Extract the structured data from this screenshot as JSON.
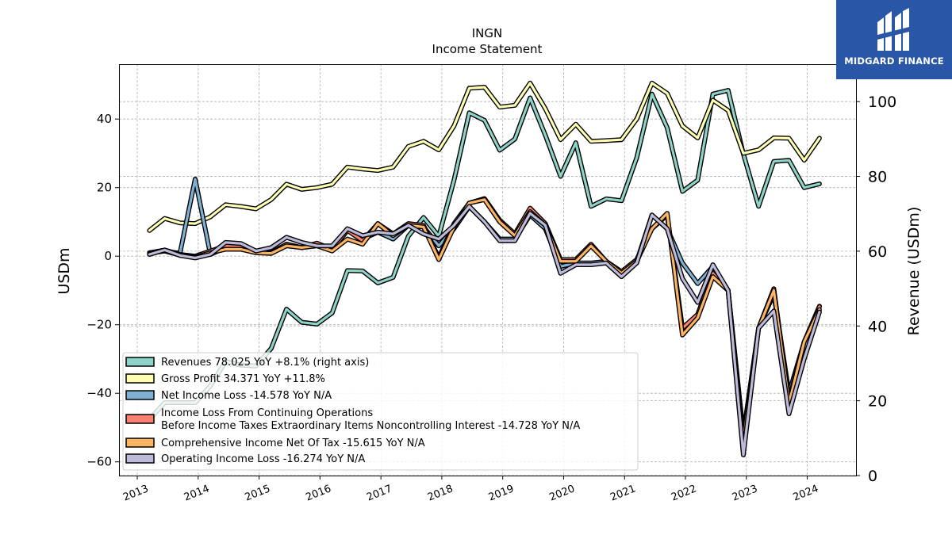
{
  "brand": {
    "name": "MIDGARD FINANCE",
    "bg_color": "#2a56a8"
  },
  "chart_data": {
    "type": "line",
    "title": "INGN",
    "subtitle": "Income Statement",
    "ylabel_left": "USDm",
    "ylabel_right": "Revenue (USDm)",
    "ylim_left": [
      -64,
      56
    ],
    "ylim_right": [
      0,
      110
    ],
    "yticks_left": [
      -60,
      -40,
      -20,
      0,
      20,
      40
    ],
    "yticks_left_labels": [
      "−60",
      "−40",
      "−20",
      "0",
      "20",
      "40"
    ],
    "yticks_right": [
      0,
      20,
      40,
      60,
      80,
      100
    ],
    "yticks_right_labels": [
      "0",
      "20",
      "40",
      "60",
      "80",
      "100"
    ],
    "xlim": [
      2012.7,
      2024.8
    ],
    "xticks": [
      2013,
      2014,
      2015,
      2016,
      2017,
      2018,
      2019,
      2020,
      2021,
      2022,
      2023,
      2024
    ],
    "xtick_labels": [
      "2013",
      "2014",
      "2015",
      "2016",
      "2017",
      "2018",
      "2019",
      "2020",
      "2021",
      "2022",
      "2023",
      "2024"
    ],
    "grid": true,
    "legend_position": "lower-left",
    "x": [
      2013.2,
      2013.45,
      2013.7,
      2013.95,
      2014.2,
      2014.45,
      2014.7,
      2014.95,
      2015.2,
      2015.45,
      2015.7,
      2015.95,
      2016.2,
      2016.45,
      2016.7,
      2016.95,
      2017.2,
      2017.45,
      2017.7,
      2017.95,
      2018.2,
      2018.45,
      2018.7,
      2018.95,
      2019.2,
      2019.45,
      2019.7,
      2019.95,
      2020.2,
      2020.45,
      2020.7,
      2020.95,
      2021.2,
      2021.45,
      2021.7,
      2021.95,
      2022.2,
      2022.45,
      2022.7,
      2022.95,
      2023.2,
      2023.45,
      2023.7,
      2023.95,
      2024.2
    ],
    "series": [
      {
        "name": "Revenues",
        "legend_label": "Revenues  78.025 YoY +8.1% (right axis)",
        "axis": "right",
        "color": "#8dd3c7",
        "values": [
          15,
          19.5,
          19.5,
          19.5,
          24,
          30.5,
          29.5,
          29.3,
          34,
          44.5,
          41,
          40.5,
          43.5,
          54.8,
          54.7,
          51.5,
          53,
          64,
          69,
          64,
          79,
          97,
          95,
          87,
          90,
          101,
          91,
          80,
          89,
          72,
          74,
          73.5,
          85,
          102,
          93,
          76,
          79,
          102,
          103,
          86,
          72,
          84,
          84.3,
          77,
          78
        ]
      },
      {
        "name": "Gross Profit",
        "legend_label": "Gross Profit  34.371 YoY +11.8%",
        "axis": "left",
        "color": "#ffffb3",
        "values": [
          7.5,
          11,
          9.7,
          9.5,
          11.5,
          15,
          14.5,
          13.8,
          16.5,
          21,
          19.5,
          20,
          21,
          26,
          25.4,
          25,
          26,
          32,
          33.5,
          31,
          38,
          49,
          49.3,
          43.5,
          44,
          50.5,
          43,
          34,
          38.5,
          33.5,
          33.7,
          34,
          40,
          50.5,
          47.5,
          38,
          34.5,
          45.5,
          42.5,
          30,
          31,
          34.5,
          34.4,
          28,
          34.4
        ]
      },
      {
        "name": "Net Income Loss",
        "legend_label": "Net Income Loss  -14.578 YoY N/A",
        "axis": "left",
        "color": "#80b1d3",
        "values": [
          1,
          1.5,
          0.8,
          22.5,
          0.5,
          2.5,
          2,
          1.5,
          1,
          3.5,
          2.5,
          3.5,
          2,
          7.5,
          5,
          7,
          5,
          9,
          8.5,
          3,
          8,
          14.5,
          10,
          5,
          5,
          12,
          8,
          -3,
          -2,
          -2,
          -1.5,
          -5,
          -1.5,
          12,
          8,
          -2,
          -8,
          -3,
          -10,
          -52,
          -21,
          -11,
          -40,
          -25,
          -14.6
        ]
      },
      {
        "name": "Income Loss From Continuing Operations Before Income Taxes Extraordinary Items Noncontrolling Interest",
        "legend_label_line1": "Income Loss From Continuing Operations",
        "legend_label_line2": "Before Income Taxes Extraordinary Items Noncontrolling Interest  -14.728 YoY N/A",
        "axis": "left",
        "color": "#fb8072",
        "values": [
          1,
          1.8,
          0.5,
          0,
          1.5,
          3,
          2.8,
          1.5,
          1,
          3.5,
          2.5,
          3.8,
          2,
          7.5,
          4.5,
          9.5,
          6.5,
          9.5,
          9,
          -0.5,
          9.5,
          15.5,
          16.8,
          10.5,
          6.5,
          14,
          9.5,
          -1,
          -1,
          3.5,
          -1.5,
          -4.5,
          -1,
          8,
          12,
          -21,
          -17,
          -5,
          -10,
          -53,
          -21,
          -9.5,
          -42,
          -25,
          -14.7
        ]
      },
      {
        "name": "Comprehensive Income Net Of Tax",
        "legend_label": "Comprehensive Income Net Of Tax  -15.615 YoY N/A",
        "axis": "left",
        "color": "#fdb462",
        "values": [
          0.8,
          1.5,
          0.3,
          -0.3,
          1,
          2,
          2,
          1,
          0.8,
          3,
          2.5,
          3,
          1.5,
          5,
          3.5,
          9.5,
          6,
          9,
          8.5,
          -1,
          8.5,
          15.5,
          16.5,
          10,
          6,
          13,
          9,
          -1.5,
          -1.5,
          3,
          -1.5,
          -5,
          -1.5,
          8,
          12.5,
          -23,
          -18,
          -6,
          -10,
          -54,
          -21,
          -10,
          -43,
          -25,
          -15.6
        ]
      },
      {
        "name": "Operating Income Loss",
        "legend_label": "Operating Income Loss  -16.274 YoY N/A",
        "axis": "left",
        "color": "#bebada",
        "values": [
          0.5,
          1.8,
          0.2,
          -0.5,
          0.5,
          4,
          3.7,
          1.5,
          2.5,
          5.5,
          4,
          3,
          3,
          8,
          6,
          7,
          6.5,
          9,
          6.5,
          5,
          9,
          14.5,
          10,
          4.5,
          4.5,
          12.5,
          9,
          -5,
          -2.5,
          -2.5,
          -2,
          -6,
          -2,
          12,
          8,
          -6.5,
          -13.5,
          -2.5,
          -10,
          -58,
          -21,
          -16,
          -46,
          -30,
          -16.3
        ]
      }
    ]
  }
}
